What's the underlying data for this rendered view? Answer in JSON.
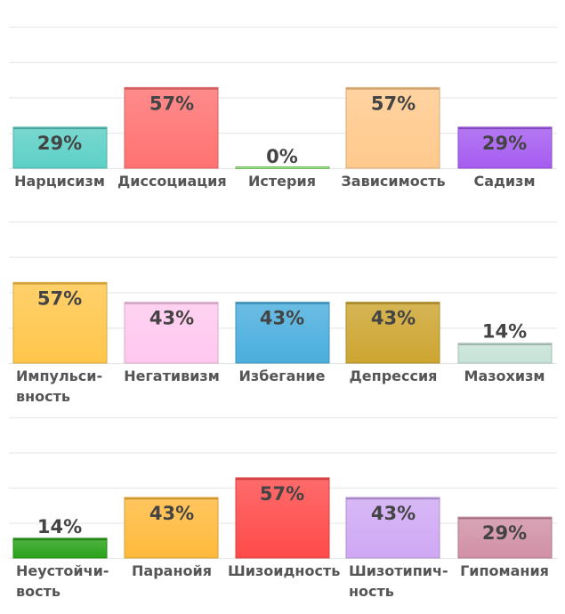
{
  "chart_data": [
    {
      "type": "bar",
      "categories": [
        "Нарцисизм",
        "Диссоциация",
        "Истерия",
        "Зависимость",
        "Садизм"
      ],
      "values": [
        29,
        57,
        0,
        57,
        29
      ],
      "value_labels": [
        "29%",
        "57%",
        "0%",
        "57%",
        "29%"
      ],
      "colors": [
        "#5cd0c6",
        "#ff7272",
        "#8fdc7a",
        "#ffc98c",
        "#a55cf0"
      ],
      "ylim": [
        0,
        100
      ],
      "grid": true
    },
    {
      "type": "bar",
      "categories": [
        "Импульсивность",
        "Негативизм",
        "Избегание",
        "Депрессия",
        "Мазохизм"
      ],
      "label_lines": [
        [
          "Импульси-",
          "вность"
        ],
        [
          "Негативизм"
        ],
        [
          "Избегание"
        ],
        [
          "Депрессия"
        ],
        [
          "Мазохизм"
        ]
      ],
      "values": [
        57,
        43,
        43,
        43,
        14
      ],
      "value_labels": [
        "57%",
        "43%",
        "43%",
        "43%",
        "14%"
      ],
      "colors": [
        "#ffc64a",
        "#ffc8ee",
        "#4aaedd",
        "#cda530",
        "#c6e2d6"
      ],
      "ylim": [
        0,
        100
      ],
      "grid": true
    },
    {
      "type": "bar",
      "categories": [
        "Неустойчивость",
        "Паранойя",
        "Шизоидность",
        "Шизотипичность",
        "Гипомания"
      ],
      "label_lines": [
        [
          "Неустойчи-",
          "вость"
        ],
        [
          "Паранойя"
        ],
        [
          "Шизоидность"
        ],
        [
          "Шизотипич-",
          "ность"
        ],
        [
          "Гипомания"
        ]
      ],
      "values": [
        14,
        43,
        57,
        43,
        29
      ],
      "value_labels": [
        "14%",
        "43%",
        "57%",
        "43%",
        "29%"
      ],
      "colors": [
        "#2aa21a",
        "#ffba3c",
        "#ff4a4a",
        "#cfa8f4",
        "#d190a6"
      ],
      "ylim": [
        0,
        100
      ],
      "grid": true
    }
  ]
}
